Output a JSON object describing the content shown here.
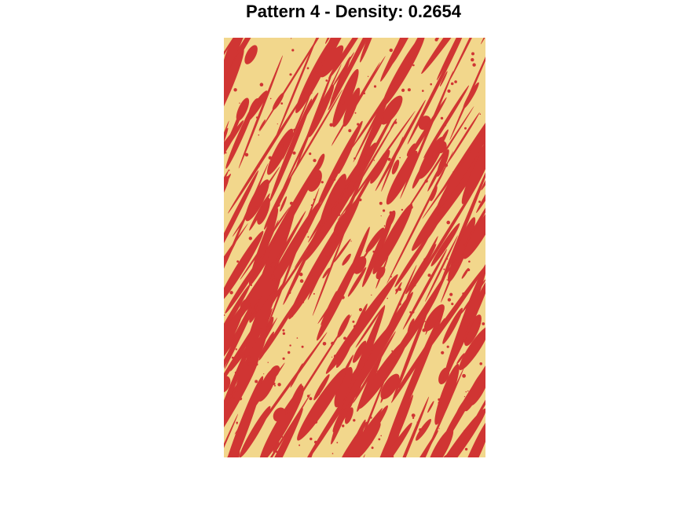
{
  "title": "Pattern 4 - Density: 0.2654",
  "colors": {
    "background": "#F2D78C",
    "foreground": "#D03533"
  }
}
